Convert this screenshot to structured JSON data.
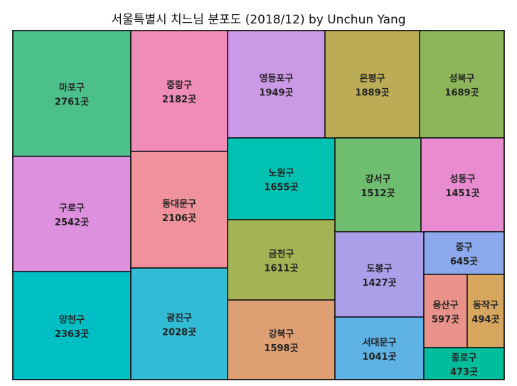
{
  "chart_data": {
    "type": "treemap",
    "title": "서울특별시 치느님 분포도 (2018/12) by Unchun Yang",
    "unit": "곳",
    "tiles": [
      {
        "name": "마포구",
        "value": 2761,
        "color": "#4cc08a"
      },
      {
        "name": "구로구",
        "value": 2542,
        "color": "#dd90dd"
      },
      {
        "name": "양천구",
        "value": 2363,
        "color": "#00bfc4"
      },
      {
        "name": "중랑구",
        "value": 2182,
        "color": "#f08cb8"
      },
      {
        "name": "동대문구",
        "value": 2106,
        "color": "#ef929b"
      },
      {
        "name": "광진구",
        "value": 2028,
        "color": "#33bcd6"
      },
      {
        "name": "영등포구",
        "value": 1949,
        "color": "#cc99e6"
      },
      {
        "name": "노원구",
        "value": 1655,
        "color": "#00c2b2"
      },
      {
        "name": "금천구",
        "value": 1611,
        "color": "#a4b454"
      },
      {
        "name": "강북구",
        "value": 1598,
        "color": "#de9f73"
      },
      {
        "name": "은평구",
        "value": 1889,
        "color": "#bcac55"
      },
      {
        "name": "강서구",
        "value": 1512,
        "color": "#6fbe6f"
      },
      {
        "name": "도봉구",
        "value": 1427,
        "color": "#ac9fea"
      },
      {
        "name": "서대문구",
        "value": 1041,
        "color": "#5fb2e6"
      },
      {
        "name": "성북구",
        "value": 1689,
        "color": "#8db65a"
      },
      {
        "name": "성동구",
        "value": 1451,
        "color": "#e98bd0"
      },
      {
        "name": "중구",
        "value": 645,
        "color": "#8ba9ec"
      },
      {
        "name": "용산구",
        "value": 597,
        "color": "#e8928a"
      },
      {
        "name": "동작구",
        "value": 494,
        "color": "#d6a65f"
      },
      {
        "name": "종로구",
        "value": 473,
        "color": "#00be9c"
      }
    ]
  }
}
